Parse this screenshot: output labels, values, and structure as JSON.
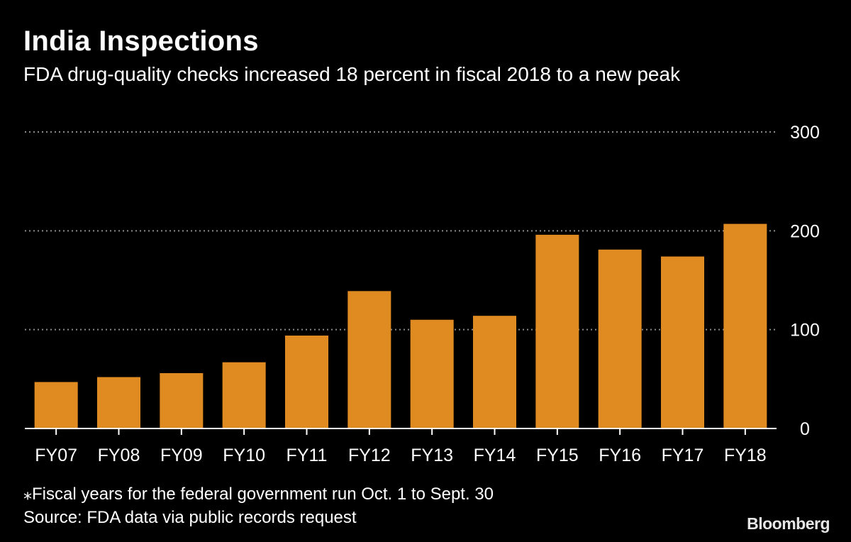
{
  "header": {
    "title": "India Inspections",
    "subtitle": "FDA drug-quality checks increased 18 percent in fiscal 2018 to a new peak"
  },
  "footer": {
    "note": "⁎Fiscal years for the federal government run Oct. 1 to Sept. 30",
    "source": "Source: FDA data via public records request",
    "brand": "Bloomberg"
  },
  "chart_data": {
    "type": "bar",
    "title": "India Inspections",
    "subtitle": "FDA drug-quality checks increased 18 percent in fiscal 2018 to a new peak",
    "categories": [
      "FY07",
      "FY08",
      "FY09",
      "FY10",
      "FY11",
      "FY12",
      "FY13",
      "FY14",
      "FY15",
      "FY16",
      "FY17",
      "FY18"
    ],
    "values": [
      47,
      52,
      56,
      67,
      94,
      139,
      110,
      114,
      196,
      181,
      174,
      207
    ],
    "ylim": [
      0,
      300
    ],
    "yticks": [
      0,
      100,
      200,
      300
    ],
    "ytick_labels": [
      "0",
      "100",
      "200",
      "300"
    ],
    "y_axis_side": "right",
    "grid": "dotted horizontal",
    "bar_color": "#e08b21",
    "gridline_color": "#8a8a8a",
    "background": "#000000"
  }
}
